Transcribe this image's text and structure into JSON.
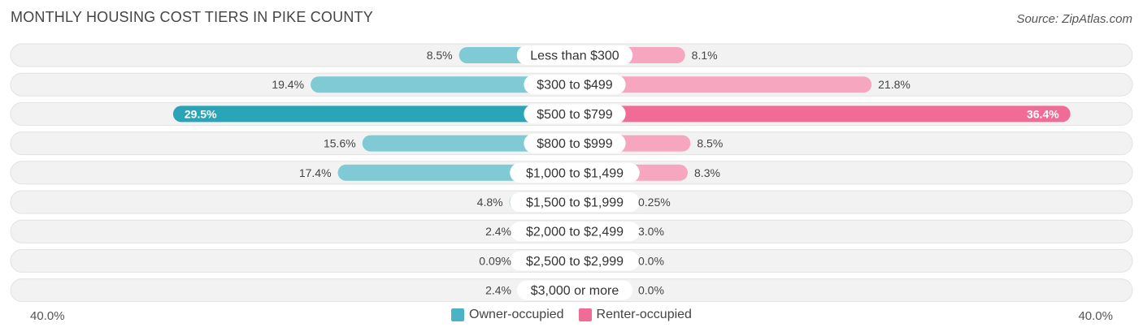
{
  "header": {
    "title": "MONTHLY HOUSING COST TIERS IN PIKE COUNTY",
    "source": "Source: ZipAtlas.com"
  },
  "colors": {
    "owner": "#4ab4c4",
    "owner_light": "#7fcad4",
    "renter": "#f06c97",
    "renter_light": "#f7a6c0",
    "row_bg": "#f2f2f2"
  },
  "chart_data": {
    "type": "bar",
    "orientation": "diverging-horizontal",
    "categories": [
      "Less than $300",
      "$300 to $499",
      "$500 to $799",
      "$800 to $999",
      "$1,000 to $1,499",
      "$1,500 to $1,999",
      "$2,000 to $2,499",
      "$2,500 to $2,999",
      "$3,000 or more"
    ],
    "series": [
      {
        "name": "Owner-occupied",
        "values": [
          8.5,
          19.4,
          29.5,
          15.6,
          17.4,
          4.8,
          2.4,
          0.09,
          2.4
        ],
        "labels": [
          "8.5%",
          "19.4%",
          "29.5%",
          "15.6%",
          "17.4%",
          "4.8%",
          "2.4%",
          "0.09%",
          "2.4%"
        ]
      },
      {
        "name": "Renter-occupied",
        "values": [
          8.1,
          21.8,
          36.4,
          8.5,
          8.3,
          0.25,
          3.0,
          0.0,
          0.0
        ],
        "labels": [
          "8.1%",
          "21.8%",
          "36.4%",
          "8.5%",
          "8.3%",
          "0.25%",
          "3.0%",
          "0.0%",
          "0.0%"
        ]
      }
    ],
    "xlim": [
      -40,
      40
    ],
    "axis_labels": {
      "left": "40.0%",
      "right": "40.0%"
    },
    "legend_position": "bottom-center"
  }
}
